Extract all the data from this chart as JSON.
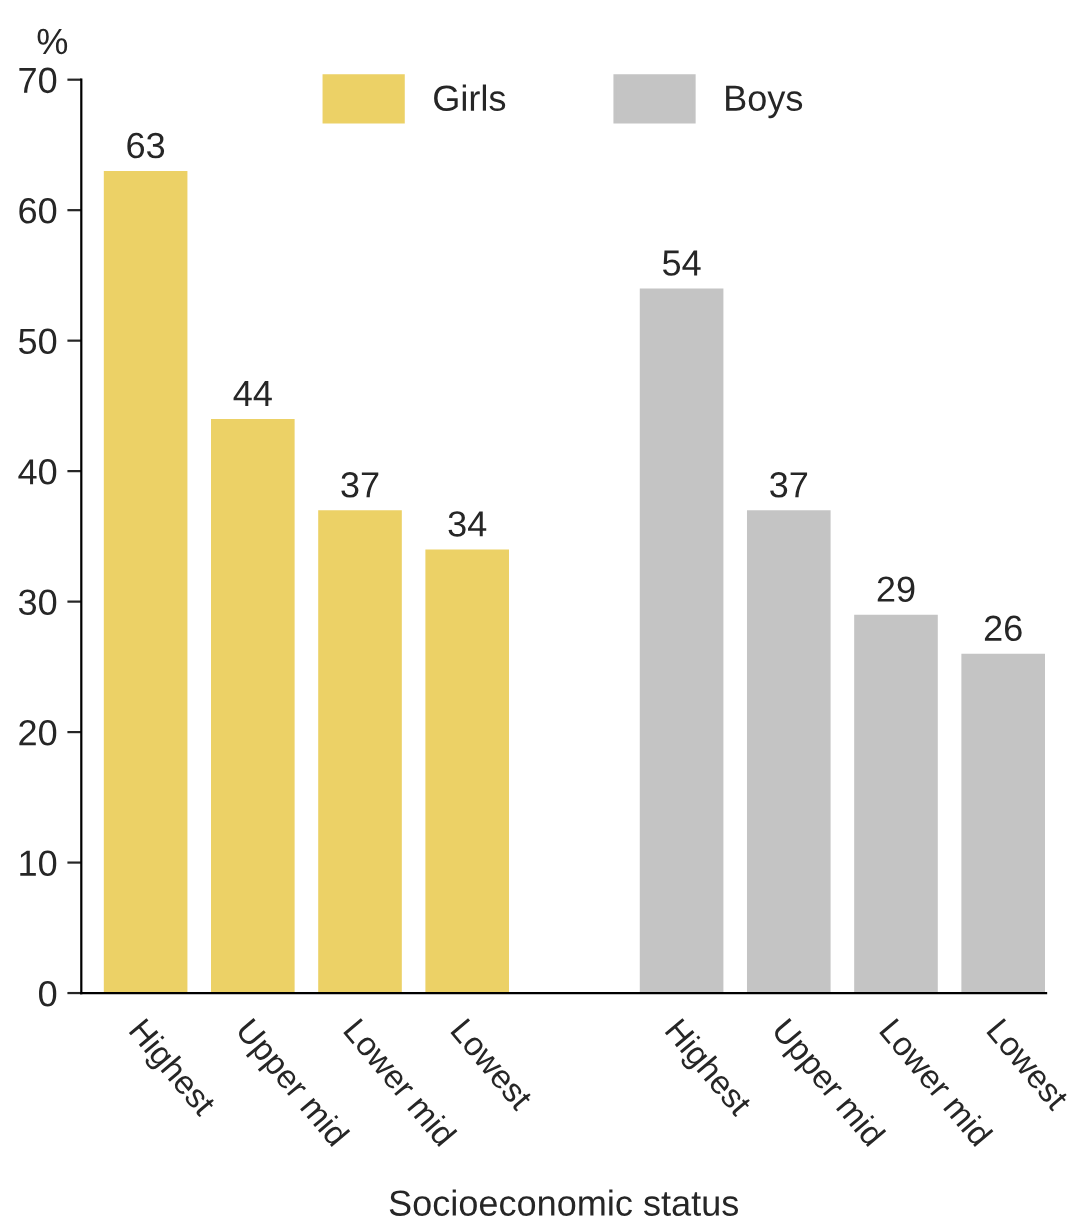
{
  "chart_data": {
    "type": "bar",
    "ylabel": "%",
    "xlabel": "Socioeconomic status",
    "categories": [
      "Highest",
      "Upper mid",
      "Lower mid",
      "Lowest",
      null,
      "Highest",
      "Upper mid",
      "Lower mid",
      "Lowest"
    ],
    "series": [
      {
        "name": "Girls",
        "color": "#ecd166",
        "values": [
          63,
          44,
          37,
          34,
          null,
          null,
          null,
          null,
          null
        ]
      },
      {
        "name": "Boys",
        "color": "#c4c4c4",
        "values": [
          null,
          null,
          null,
          null,
          null,
          54,
          37,
          29,
          26
        ]
      }
    ],
    "ylim": [
      0,
      70
    ],
    "yticks": [
      0,
      10,
      20,
      30,
      40,
      50,
      60,
      70
    ],
    "data_labels": true,
    "grid": false,
    "legend": "top"
  }
}
